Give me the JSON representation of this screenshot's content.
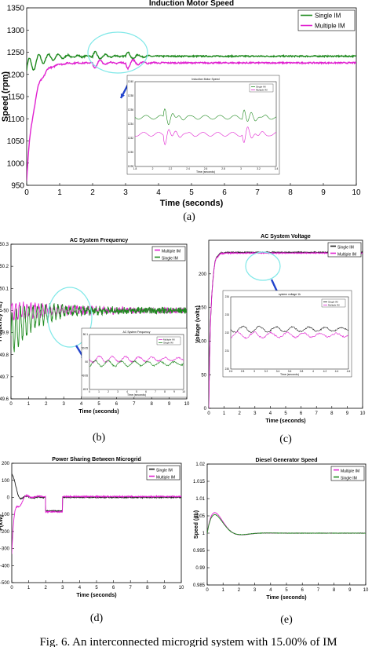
{
  "colors": {
    "green": "#1f8a1f",
    "magenta": "#e020d0",
    "inset_circle": "#7fe8e8",
    "arrow": "#2244cc",
    "dark": "#202020"
  },
  "footer_text": "Fig. 6. An interconnected microgrid system with 15.00% of IM",
  "chart_data": [
    {
      "id": "a",
      "type": "line",
      "caption": "(a)",
      "title": "Induction Motor Speed",
      "xlabel": "Time (seconds)",
      "ylabel": "Speed (rpm)",
      "xlim": [
        0,
        10
      ],
      "ylim": [
        950,
        1350
      ],
      "xticks": [
        0,
        1,
        2,
        3,
        4,
        5,
        6,
        7,
        8,
        9,
        10
      ],
      "yticks": [
        950,
        1000,
        1050,
        1100,
        1150,
        1200,
        1250,
        1300,
        1350
      ],
      "legend": "top-right",
      "series": [
        {
          "name": "Single IM",
          "color": "green",
          "steady": 1241,
          "start": 1210,
          "osc": 22,
          "decay": 1.5,
          "freq": 17,
          "noise": 1.5,
          "bursts": [
            [
              2,
              12
            ],
            [
              3,
              12
            ]
          ]
        },
        {
          "name": "Multiple IM",
          "color": "magenta",
          "steady": 1226,
          "start": 960,
          "osc": 10,
          "decay": 2.0,
          "freq": 17,
          "noise": 1.5,
          "bursts": [
            [
              2,
              -16
            ],
            [
              3,
              -16
            ]
          ]
        }
      ],
      "inset": {
        "title": "Induction Motor Speed",
        "xlabel": "Time (seconds)",
        "xticks": [
          "1.8",
          "2",
          "2.2",
          "2.4",
          "2.6",
          "2.8",
          "3",
          "3.2",
          "3.4"
        ],
        "yticks": [
          "1240",
          "1238",
          "1236",
          "1234",
          "1232",
          "1230",
          "1228"
        ],
        "legend": [
          "Single IM",
          "Multiple IM"
        ]
      }
    },
    {
      "id": "b",
      "type": "line",
      "caption": "(b)",
      "title": "AC System Frequency",
      "xlabel": "Time (seconds)",
      "ylabel": "Frequency (Hz)",
      "xlim": [
        0,
        10
      ],
      "ylim": [
        49.6,
        50.3
      ],
      "xticks": [
        0,
        1,
        2,
        3,
        4,
        5,
        6,
        7,
        8,
        9,
        10
      ],
      "yticks": [
        49.6,
        49.7,
        49.8,
        49.9,
        50,
        50.1,
        50.2,
        50.3
      ],
      "legend": "top-right",
      "series": [
        {
          "name": "Multiple IM",
          "color": "magenta",
          "steady": 50.0,
          "start": 50.0,
          "osc": 0.04,
          "decay": 0.3,
          "freq": 23,
          "noise": 0.012
        },
        {
          "name": "Single IM",
          "color": "green",
          "steady": 50.0,
          "start": 49.88,
          "osc": 0.1,
          "decay": 0.5,
          "freq": 21,
          "noise": 0.014
        }
      ],
      "inset": {
        "title": "AC System Frequency",
        "xlabel": "Time (seconds)",
        "xticks": [
          "0",
          "1",
          "2",
          "3",
          "4",
          "5",
          "6",
          "7",
          "8",
          "9",
          "10"
        ],
        "yticks": [
          "50.1",
          "50.05",
          "50",
          "49.95",
          "49.9"
        ],
        "legend": [
          "Multiple IM",
          "Single IM"
        ]
      }
    },
    {
      "id": "c",
      "type": "line",
      "caption": "(c)",
      "title": "AC System Voltage",
      "xlabel": "Time (seconds)",
      "ylabel": "Voltage (volts)",
      "xlim": [
        0,
        10
      ],
      "ylim": [
        0,
        250
      ],
      "xticks": [
        0,
        1,
        2,
        3,
        4,
        5,
        6,
        7,
        8,
        9,
        10
      ],
      "yticks": [
        0,
        50,
        100,
        150,
        200
      ],
      "legend": "top-right",
      "series": [
        {
          "name": "Single IM",
          "color": "dark",
          "steady": 232,
          "start": 0,
          "osc": 6,
          "decay": 3,
          "freq": 14,
          "noise": 0.6
        },
        {
          "name": "Multiple IM",
          "color": "magenta",
          "steady": 231,
          "start": 0,
          "osc": 7,
          "decay": 3,
          "freq": 14,
          "noise": 0.6
        }
      ],
      "inset": {
        "title": "system voltage 1k",
        "xlabel": "Time (seconds)",
        "xticks": [
          "2.6",
          "2.8",
          "3",
          "3.2",
          "3.4",
          "3.6",
          "3.8",
          "4",
          "4.2",
          "4.4",
          "4.6"
        ],
        "yticks": [
          "234",
          "233",
          "232",
          "231",
          "230"
        ],
        "legend": [
          "Single IM",
          "Multiple IM"
        ]
      }
    },
    {
      "id": "d",
      "type": "line",
      "caption": "(d)",
      "title": "Power Sharing Between Microgrid",
      "xlabel": "Time (seconds)",
      "ylabel": "P(kW)",
      "xlim": [
        0,
        10
      ],
      "ylim": [
        -500,
        200
      ],
      "xticks": [
        0,
        1,
        2,
        3,
        4,
        5,
        6,
        7,
        8,
        9,
        10
      ],
      "yticks": [
        -500,
        -400,
        -300,
        -200,
        -100,
        0,
        100,
        200
      ],
      "legend": "top-right",
      "series": [
        {
          "name": "Single IM",
          "color": "dark",
          "steady": 0,
          "start": 140,
          "osc": 60,
          "decay": 2.5,
          "freq": 7,
          "noise": 3,
          "dips": [
            [
              2,
              3,
              -80
            ]
          ]
        },
        {
          "name": "Multiple IM",
          "color": "magenta",
          "steady": 5,
          "start": -330,
          "osc": 75,
          "decay": 2.2,
          "freq": 7,
          "noise": 3,
          "dips": [
            [
              2,
              3,
              -90
            ]
          ]
        }
      ]
    },
    {
      "id": "e",
      "type": "line",
      "caption": "(e)",
      "title": "Diesel Generator Speed",
      "xlabel": "Time (seconds)",
      "ylabel": "Speed (pu)",
      "xlim": [
        0,
        10
      ],
      "ylim": [
        0.985,
        1.02
      ],
      "xticks": [
        0,
        1,
        2,
        3,
        4,
        5,
        6,
        7,
        8,
        9,
        10
      ],
      "yticks": [
        "0.985",
        "0.99",
        "0.995",
        "1",
        "1.005",
        "1.01",
        "1.015",
        "1.02"
      ],
      "legend": "top-right",
      "series": [
        {
          "name": "Multiple IM",
          "color": "magenta",
          "steady": 1.0,
          "start": 1.0,
          "osc": 0.0155,
          "decay": 1.5,
          "freq": 1.5,
          "noise": 5e-05
        },
        {
          "name": "Single IM",
          "color": "green",
          "steady": 1.0,
          "start": 1.0,
          "osc": 0.014,
          "decay": 1.5,
          "freq": 1.5,
          "noise": 5e-05
        }
      ]
    }
  ]
}
